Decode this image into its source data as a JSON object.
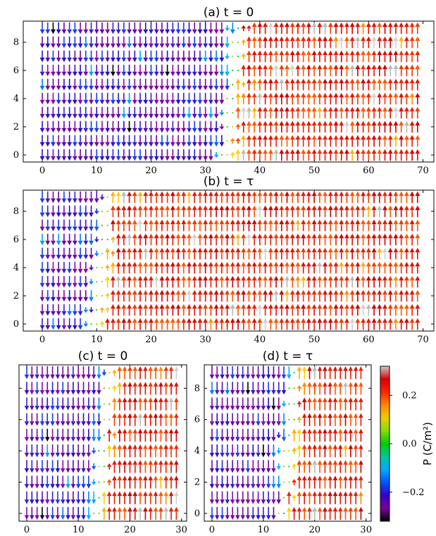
{
  "chart_data": [
    {
      "type": "vector_field",
      "title": "(a) t = 0",
      "x_ticks": [
        0,
        10,
        20,
        30,
        40,
        50,
        60,
        70
      ],
      "y_ticks": [
        0,
        2,
        4,
        6,
        8
      ],
      "xlim": [
        -3.5,
        72
      ],
      "ylim": [
        -0.5,
        9.5
      ],
      "grid": {
        "nx": 70,
        "ny": 10
      },
      "domain_wall_x": 35,
      "left_polarization": "down",
      "right_polarization": "up"
    },
    {
      "type": "vector_field",
      "title": "(b) t = τ",
      "x_ticks": [
        0,
        10,
        20,
        30,
        40,
        50,
        60,
        70
      ],
      "y_ticks": [
        0,
        2,
        4,
        6,
        8
      ],
      "xlim": [
        -3.5,
        72
      ],
      "ylim": [
        -0.5,
        9.5
      ],
      "grid": {
        "nx": 70,
        "ny": 10
      },
      "domain_wall_x": 11,
      "left_polarization": "down",
      "right_polarization": "up"
    },
    {
      "type": "vector_field",
      "title": "(c) t = 0",
      "x_ticks": [
        0,
        10,
        20,
        30
      ],
      "y_ticks": [],
      "xlim": [
        -1.5,
        31
      ],
      "ylim": [
        -0.5,
        9.5
      ],
      "grid": {
        "nx": 30,
        "ny": 10
      },
      "domain_wall_x": 15,
      "left_polarization": "down",
      "right_polarization": "up"
    },
    {
      "type": "vector_field",
      "title": "(d) t = τ",
      "x_ticks": [
        0,
        10,
        20,
        30
      ],
      "y_ticks": [
        0,
        2,
        4,
        6,
        8
      ],
      "xlim": [
        -1.5,
        31
      ],
      "ylim": [
        -0.5,
        9.5
      ],
      "grid": {
        "nx": 30,
        "ny": 10
      },
      "domain_wall_x": 15,
      "left_polarization": "down",
      "right_polarization": "up"
    }
  ],
  "colorbar": {
    "label": "P (C/m²)",
    "ticks": [
      0.2,
      0.0,
      -0.2
    ],
    "tick_labels": [
      "0.2",
      "0.0",
      "−0.2"
    ],
    "range": [
      -0.32,
      0.32
    ],
    "colormap": [
      "#000000",
      "#7a009a",
      "#3300cc",
      "#0055ff",
      "#00aaff",
      "#00c8a0",
      "#00cc00",
      "#88dd00",
      "#eecc00",
      "#ff8800",
      "#ff2200",
      "#dd0000",
      "#cccccc"
    ]
  }
}
